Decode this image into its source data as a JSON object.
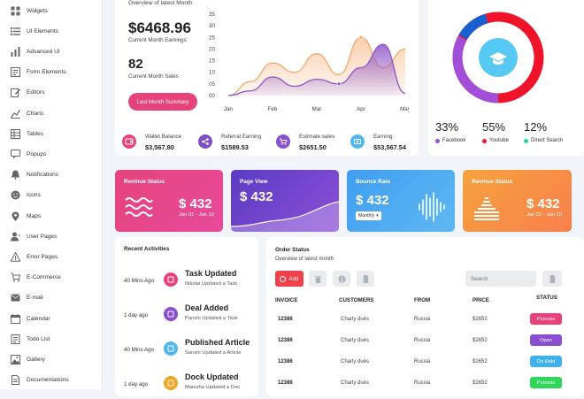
{
  "sidebar": {
    "items": [
      {
        "label": "Widgets",
        "icon": "grid-icon"
      },
      {
        "label": "UI Elements",
        "icon": "list-icon"
      },
      {
        "label": "Advanced UI",
        "icon": "bars-icon"
      },
      {
        "label": "Form Elements",
        "icon": "form-icon"
      },
      {
        "label": "Editors",
        "icon": "edit-icon"
      },
      {
        "label": "Charts",
        "icon": "chart-icon"
      },
      {
        "label": "Tables",
        "icon": "table-icon"
      },
      {
        "label": "Popups",
        "icon": "popup-icon"
      },
      {
        "label": "Notifications",
        "icon": "bell-icon"
      },
      {
        "label": "Icons",
        "icon": "smile-icon"
      },
      {
        "label": "Maps",
        "icon": "pin-icon"
      },
      {
        "label": "User Pages",
        "icon": "user-icon"
      },
      {
        "label": "Error Pages",
        "icon": "warning-icon"
      },
      {
        "label": "E-Commerce",
        "icon": "cart-icon"
      },
      {
        "label": "E-mail",
        "icon": "mail-icon"
      },
      {
        "label": "Calendar",
        "icon": "calendar-icon"
      },
      {
        "label": "Todo List",
        "icon": "todo-icon"
      },
      {
        "label": "Gallery",
        "icon": "gallery-icon"
      },
      {
        "label": "Documentations",
        "icon": "doc-icon"
      }
    ]
  },
  "overview": {
    "subtitle": "Overview of latest Month",
    "earnings_value": "$6468.96",
    "earnings_label": "Current Month Earnings",
    "sales_value": "82",
    "sales_label": "Current Month Sales",
    "summary_button": "Last Month Summary"
  },
  "chart_data": {
    "type": "area",
    "categories": [
      "Jan",
      "Feb",
      "Mar",
      "Apr",
      "May"
    ],
    "yticks": [
      "35",
      "30",
      "25",
      "20",
      "15",
      "10",
      "05",
      "00"
    ],
    "ylim": [
      0,
      35
    ],
    "series": [
      {
        "color": "#f4a86a",
        "x": [
          0,
          0.5,
          1,
          1.5,
          2,
          2.5,
          3,
          3.5,
          4
        ],
        "values": [
          0,
          6,
          14,
          10,
          18,
          9,
          25,
          12,
          20
        ]
      },
      {
        "color": "#8e55c6",
        "x": [
          0,
          0.5,
          1,
          1.5,
          2,
          2.5,
          3,
          3.5,
          4
        ],
        "values": [
          0,
          2,
          8,
          4,
          7,
          5,
          12,
          22,
          1
        ]
      }
    ]
  },
  "mini_stats": [
    {
      "label": "Wallet Balance",
      "value": "$3,567.80",
      "color": "#e6437a",
      "icon": "wallet-icon"
    },
    {
      "label": "Referral Earning",
      "value": "$1589.53",
      "color": "#7f4fc6",
      "icon": "share-icon"
    },
    {
      "label": "Estimate sales",
      "value": "$2651.50",
      "color": "#8a4fd0",
      "icon": "cart-icon"
    },
    {
      "label": "Earning",
      "value": "$53,567.54",
      "color": "#4fb6ee",
      "icon": "dollar-icon"
    }
  ],
  "donut": {
    "legend": [
      {
        "percent": "33%",
        "label": "Facebook",
        "color": "#a14fd8"
      },
      {
        "percent": "55%",
        "label": "Youtube",
        "color": "#f0142b"
      },
      {
        "percent": "12%",
        "label": "Direct Search",
        "color": "#1fd6a8"
      }
    ],
    "center_icon": "graduation-cap-icon"
  },
  "stat_cards": [
    {
      "title": "Revinue Status",
      "value": "$ 432",
      "sub": "Jan 01 - Jan 10",
      "icon": "waves-icon"
    },
    {
      "title": "Page View",
      "value": "$ 432",
      "sub": "",
      "icon": "area-wave-icon"
    },
    {
      "title": "Bounce Rate",
      "value": "$ 432",
      "sub": "Monthly",
      "icon": "sound-bars-icon"
    },
    {
      "title": "Revinue Status",
      "value": "$ 432",
      "sub": "Jan 01 - Jan 10",
      "icon": "equalizer-icon"
    }
  ],
  "activities": {
    "title": "Recent Activities",
    "items": [
      {
        "time": "40 Mins Ago",
        "title": "Task Updated",
        "sub": "Nikolai Updated a Task",
        "color": "#e6437a"
      },
      {
        "time": "1 day ago",
        "title": "Deal Added",
        "sub": "Panshi Updated a Task",
        "color": "#8a4fd0"
      },
      {
        "time": "40 Mins Ago",
        "title": "Published Article",
        "sub": "Sanshi Updated a Article",
        "color": "#4fb6ee"
      },
      {
        "time": "1 day ago",
        "title": "Dock Updated",
        "sub": "Manisha Updated a Doc",
        "color": "#f5a623"
      }
    ]
  },
  "orders": {
    "title": "Order Status",
    "subtitle": "Overview of latest month",
    "add_button": "Add",
    "search_placeholder": "Search",
    "columns": [
      "INVOICE",
      "CUSTOMERS",
      "FROM",
      "PRICE",
      "STATUS"
    ],
    "rows": [
      {
        "invoice": "12386",
        "customer": "Charly dues",
        "from": "Russia",
        "price": "$2652",
        "status": "Process",
        "color": "#e6437a"
      },
      {
        "invoice": "12386",
        "customer": "Charly dues",
        "from": "Russia",
        "price": "$2652",
        "status": "Open",
        "color": "#8a4fd0"
      },
      {
        "invoice": "12386",
        "customer": "Charly dues",
        "from": "Russia",
        "price": "$2652",
        "status": "On Hold",
        "color": "#3fb2ee"
      },
      {
        "invoice": "12386",
        "customer": "Charly dues",
        "from": "Russia",
        "price": "$2652",
        "status": "Process",
        "color": "#2fd65a"
      }
    ]
  }
}
